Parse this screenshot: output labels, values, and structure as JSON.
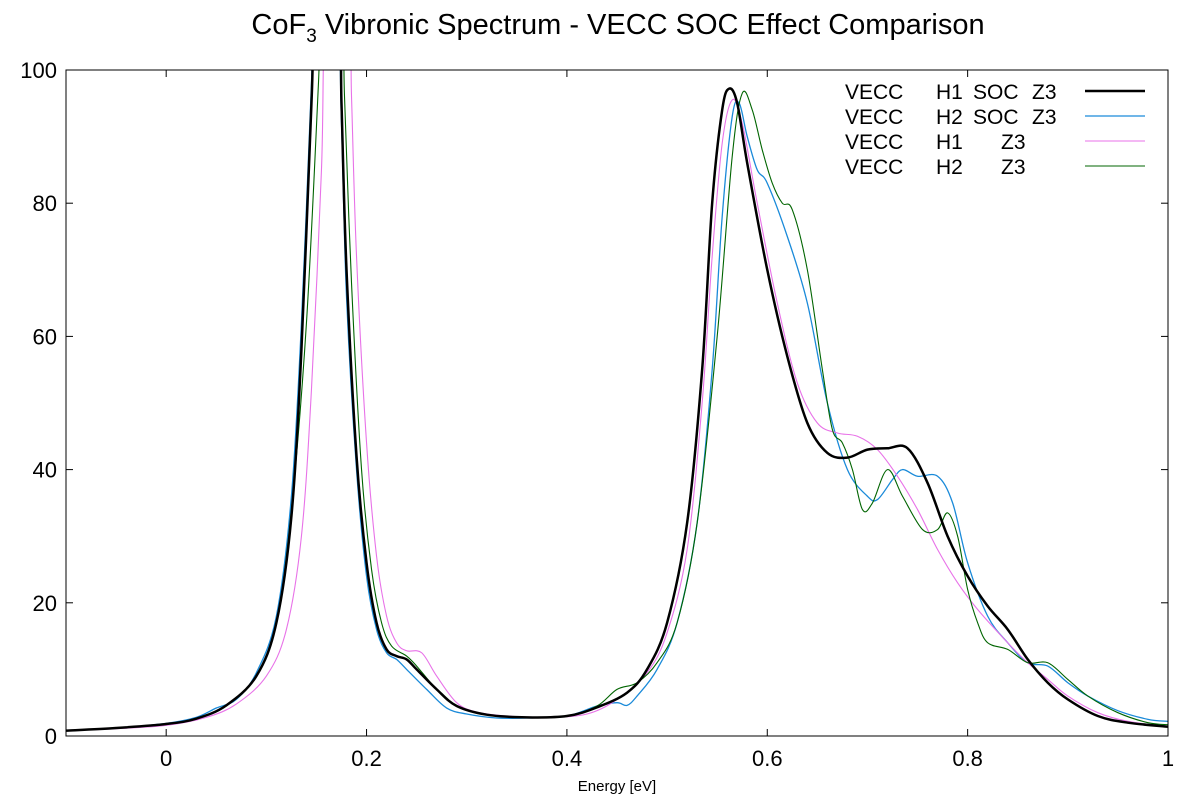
{
  "chart_data": {
    "type": "line",
    "title_main": "CoF",
    "title_sub": "3",
    "title_rest": " Vibronic Spectrum - VECC SOC Effect Comparison",
    "xlabel": "Energy [eV]",
    "ylabel": "",
    "xlim": [
      -0.1,
      1.0
    ],
    "ylim": [
      0,
      100
    ],
    "x_ticks": [
      0,
      0.2,
      0.4,
      0.6,
      0.8,
      1
    ],
    "x_tick_labels": [
      "0",
      "0.2",
      "0.4",
      "0.6",
      "0.8",
      "1"
    ],
    "y_ticks": [
      0,
      20,
      40,
      60,
      80,
      100
    ],
    "y_tick_labels": [
      "0",
      "20",
      "40",
      "60",
      "80",
      "100"
    ],
    "grid": false,
    "zero_line": "dotted",
    "legend_position": "top-right",
    "series": [
      {
        "legend": [
          "VECC",
          "H1",
          "SOC",
          "Z3"
        ],
        "color": "#000000",
        "width": 2.5,
        "points": [
          [
            -0.1,
            0.8
          ],
          [
            -0.05,
            1.2
          ],
          [
            0,
            1.8
          ],
          [
            0.03,
            2.6
          ],
          [
            0.06,
            4.6
          ],
          [
            0.09,
            9
          ],
          [
            0.11,
            17
          ],
          [
            0.125,
            33
          ],
          [
            0.135,
            58
          ],
          [
            0.145,
            95
          ],
          [
            0.15,
            110
          ],
          [
            0.172,
            110
          ],
          [
            0.175,
            95
          ],
          [
            0.18,
            70
          ],
          [
            0.19,
            42
          ],
          [
            0.2,
            26
          ],
          [
            0.21,
            17
          ],
          [
            0.22,
            13
          ],
          [
            0.23,
            12
          ],
          [
            0.24,
            11.5
          ],
          [
            0.25,
            10
          ],
          [
            0.27,
            7
          ],
          [
            0.29,
            4.5
          ],
          [
            0.32,
            3.2
          ],
          [
            0.36,
            2.8
          ],
          [
            0.4,
            3
          ],
          [
            0.43,
            4.3
          ],
          [
            0.46,
            6.5
          ],
          [
            0.48,
            10
          ],
          [
            0.5,
            17
          ],
          [
            0.52,
            32
          ],
          [
            0.535,
            55
          ],
          [
            0.545,
            80
          ],
          [
            0.555,
            94
          ],
          [
            0.562,
            97.2
          ],
          [
            0.57,
            95
          ],
          [
            0.58,
            86
          ],
          [
            0.6,
            70
          ],
          [
            0.62,
            57
          ],
          [
            0.64,
            47
          ],
          [
            0.66,
            42.5
          ],
          [
            0.68,
            41.8
          ],
          [
            0.7,
            43
          ],
          [
            0.72,
            43.2
          ],
          [
            0.74,
            43.2
          ],
          [
            0.76,
            38
          ],
          [
            0.78,
            30
          ],
          [
            0.8,
            24
          ],
          [
            0.82,
            19.5
          ],
          [
            0.84,
            16
          ],
          [
            0.86,
            11.5
          ],
          [
            0.88,
            8
          ],
          [
            0.9,
            5.5
          ],
          [
            0.93,
            3
          ],
          [
            0.96,
            2
          ],
          [
            1.0,
            1.4
          ]
        ]
      },
      {
        "legend": [
          "VECC",
          "H2",
          "SOC",
          "Z3"
        ],
        "color": "#1a8ad9",
        "width": 1.3,
        "points": [
          [
            -0.1,
            0.8
          ],
          [
            -0.05,
            1.2
          ],
          [
            0,
            1.9
          ],
          [
            0.03,
            2.8
          ],
          [
            0.05,
            4.2
          ],
          [
            0.07,
            5.5
          ],
          [
            0.09,
            9.5
          ],
          [
            0.11,
            18
          ],
          [
            0.125,
            36
          ],
          [
            0.135,
            62
          ],
          [
            0.145,
            98
          ],
          [
            0.148,
            110
          ],
          [
            0.17,
            110
          ],
          [
            0.175,
            92
          ],
          [
            0.18,
            66
          ],
          [
            0.19,
            40
          ],
          [
            0.2,
            24
          ],
          [
            0.21,
            16
          ],
          [
            0.22,
            12.5
          ],
          [
            0.23,
            11.5
          ],
          [
            0.24,
            10
          ],
          [
            0.26,
            7
          ],
          [
            0.28,
            4.2
          ],
          [
            0.3,
            3.3
          ],
          [
            0.33,
            2.7
          ],
          [
            0.36,
            2.7
          ],
          [
            0.4,
            3
          ],
          [
            0.43,
            4.5
          ],
          [
            0.45,
            5
          ],
          [
            0.46,
            4.6
          ],
          [
            0.47,
            6
          ],
          [
            0.49,
            10
          ],
          [
            0.51,
            17
          ],
          [
            0.53,
            32
          ],
          [
            0.545,
            55
          ],
          [
            0.555,
            78
          ],
          [
            0.565,
            93
          ],
          [
            0.572,
            95
          ],
          [
            0.58,
            90
          ],
          [
            0.59,
            85
          ],
          [
            0.6,
            83
          ],
          [
            0.62,
            75
          ],
          [
            0.64,
            65
          ],
          [
            0.66,
            50
          ],
          [
            0.68,
            40
          ],
          [
            0.7,
            36
          ],
          [
            0.71,
            35.5
          ],
          [
            0.725,
            38.5
          ],
          [
            0.735,
            40
          ],
          [
            0.75,
            39
          ],
          [
            0.77,
            39
          ],
          [
            0.785,
            35
          ],
          [
            0.8,
            26
          ],
          [
            0.82,
            18
          ],
          [
            0.84,
            14
          ],
          [
            0.86,
            11
          ],
          [
            0.88,
            10.5
          ],
          [
            0.9,
            8
          ],
          [
            0.92,
            6
          ],
          [
            0.95,
            3.8
          ],
          [
            0.98,
            2.5
          ],
          [
            1.0,
            2.2
          ]
        ]
      },
      {
        "legend": [
          "VECC",
          "H1",
          "",
          "Z3"
        ],
        "color": "#e872e8",
        "width": 1.1,
        "points": [
          [
            -0.1,
            0.8
          ],
          [
            -0.05,
            1.1
          ],
          [
            0,
            1.6
          ],
          [
            0.04,
            2.8
          ],
          [
            0.07,
            4.8
          ],
          [
            0.1,
            9
          ],
          [
            0.12,
            16
          ],
          [
            0.135,
            30
          ],
          [
            0.145,
            52
          ],
          [
            0.155,
            85
          ],
          [
            0.16,
            110
          ],
          [
            0.182,
            110
          ],
          [
            0.185,
            96
          ],
          [
            0.19,
            72
          ],
          [
            0.2,
            44
          ],
          [
            0.21,
            27
          ],
          [
            0.22,
            18
          ],
          [
            0.23,
            14
          ],
          [
            0.24,
            12.8
          ],
          [
            0.255,
            12.5
          ],
          [
            0.27,
            9
          ],
          [
            0.29,
            5
          ],
          [
            0.31,
            3.6
          ],
          [
            0.34,
            3
          ],
          [
            0.38,
            2.8
          ],
          [
            0.42,
            3.3
          ],
          [
            0.45,
            5.5
          ],
          [
            0.48,
            9.5
          ],
          [
            0.5,
            15.5
          ],
          [
            0.52,
            28
          ],
          [
            0.535,
            50
          ],
          [
            0.545,
            72
          ],
          [
            0.555,
            89
          ],
          [
            0.565,
            95.5
          ],
          [
            0.575,
            92
          ],
          [
            0.59,
            80
          ],
          [
            0.61,
            65
          ],
          [
            0.63,
            53
          ],
          [
            0.65,
            47
          ],
          [
            0.67,
            45.5
          ],
          [
            0.69,
            45
          ],
          [
            0.71,
            43
          ],
          [
            0.73,
            39
          ],
          [
            0.75,
            34
          ],
          [
            0.77,
            28
          ],
          [
            0.79,
            23
          ],
          [
            0.81,
            19
          ],
          [
            0.84,
            14
          ],
          [
            0.86,
            11
          ],
          [
            0.88,
            8.5
          ],
          [
            0.9,
            6
          ],
          [
            0.93,
            3.5
          ],
          [
            0.96,
            2.2
          ],
          [
            1.0,
            1.4
          ]
        ]
      },
      {
        "legend": [
          "VECC",
          "H2",
          "",
          "Z3"
        ],
        "color": "#006400",
        "width": 1.1,
        "points": [
          [
            -0.1,
            0.8
          ],
          [
            -0.05,
            1.2
          ],
          [
            0,
            1.8
          ],
          [
            0.03,
            2.6
          ],
          [
            0.06,
            4.5
          ],
          [
            0.09,
            9
          ],
          [
            0.11,
            17
          ],
          [
            0.125,
            34
          ],
          [
            0.14,
            62
          ],
          [
            0.152,
            98
          ],
          [
            0.155,
            110
          ],
          [
            0.175,
            110
          ],
          [
            0.178,
            96
          ],
          [
            0.185,
            68
          ],
          [
            0.195,
            40
          ],
          [
            0.205,
            25
          ],
          [
            0.215,
            17
          ],
          [
            0.225,
            13.5
          ],
          [
            0.24,
            12
          ],
          [
            0.25,
            10.5
          ],
          [
            0.27,
            7
          ],
          [
            0.29,
            4.5
          ],
          [
            0.32,
            3.2
          ],
          [
            0.36,
            2.8
          ],
          [
            0.4,
            3
          ],
          [
            0.43,
            4.5
          ],
          [
            0.45,
            7
          ],
          [
            0.47,
            8
          ],
          [
            0.49,
            11
          ],
          [
            0.51,
            17
          ],
          [
            0.53,
            32
          ],
          [
            0.55,
            60
          ],
          [
            0.565,
            87
          ],
          [
            0.575,
            96.5
          ],
          [
            0.585,
            94
          ],
          [
            0.595,
            88
          ],
          [
            0.605,
            83
          ],
          [
            0.615,
            80
          ],
          [
            0.625,
            79
          ],
          [
            0.64,
            70
          ],
          [
            0.655,
            55
          ],
          [
            0.665,
            46
          ],
          [
            0.675,
            44
          ],
          [
            0.685,
            40
          ],
          [
            0.695,
            34
          ],
          [
            0.705,
            35
          ],
          [
            0.72,
            40
          ],
          [
            0.735,
            36
          ],
          [
            0.755,
            31
          ],
          [
            0.77,
            31
          ],
          [
            0.78,
            33.5
          ],
          [
            0.79,
            30
          ],
          [
            0.8,
            22
          ],
          [
            0.81,
            17
          ],
          [
            0.82,
            14
          ],
          [
            0.84,
            13
          ],
          [
            0.86,
            11
          ],
          [
            0.88,
            11
          ],
          [
            0.9,
            8.5
          ],
          [
            0.92,
            6
          ],
          [
            0.95,
            3.5
          ],
          [
            0.98,
            2
          ],
          [
            1.0,
            1.7
          ]
        ]
      }
    ]
  }
}
